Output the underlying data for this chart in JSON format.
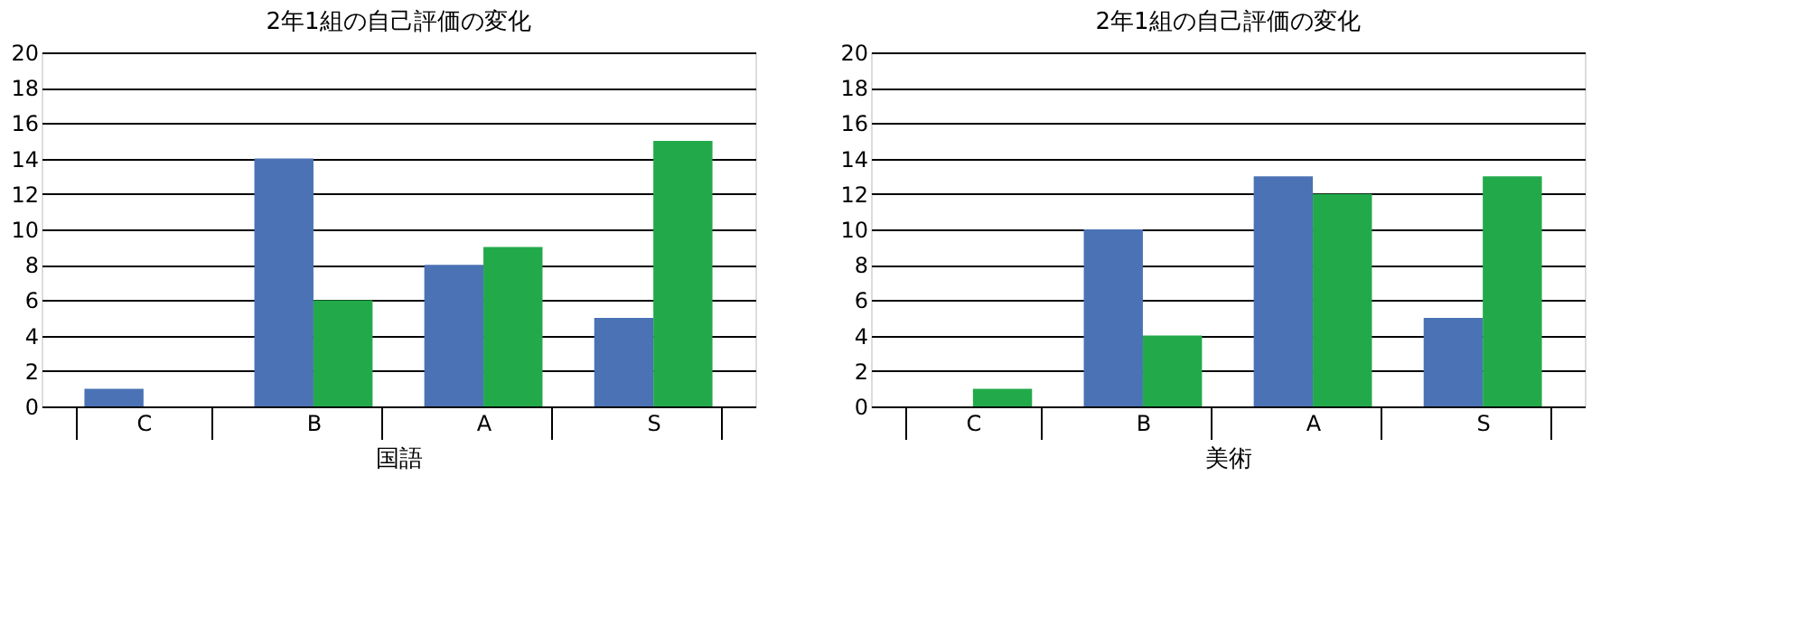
{
  "chart_data": [
    {
      "type": "bar",
      "title": "2年1組の自己評価の変化",
      "xlabel": "国語",
      "categories": [
        "C",
        "B",
        "A",
        "S"
      ],
      "ylim": [
        0,
        20
      ],
      "yticks": [
        0,
        2,
        4,
        6,
        8,
        10,
        12,
        14,
        16,
        18,
        20
      ],
      "grid": "y",
      "legend": false,
      "series": [
        {
          "color": "#4a72b5",
          "values": [
            1,
            14,
            8,
            5
          ]
        },
        {
          "color": "#22aa4a",
          "values": [
            0,
            6,
            9,
            15
          ]
        }
      ]
    },
    {
      "type": "bar",
      "title": "2年1組の自己評価の変化",
      "xlabel": "美術",
      "categories": [
        "C",
        "B",
        "A",
        "S"
      ],
      "ylim": [
        0,
        20
      ],
      "yticks": [
        0,
        2,
        4,
        6,
        8,
        10,
        12,
        14,
        16,
        18,
        20
      ],
      "grid": "y",
      "legend": false,
      "series": [
        {
          "color": "#4a72b5",
          "values": [
            0,
            10,
            13,
            5
          ]
        },
        {
          "color": "#22aa4a",
          "values": [
            1,
            4,
            12,
            13
          ]
        }
      ]
    }
  ]
}
